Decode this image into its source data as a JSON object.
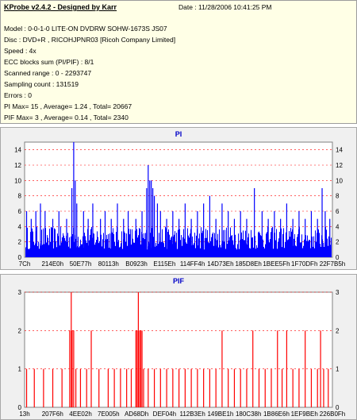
{
  "info": {
    "title": "KProbe v2.4.2 - Designed by Karr",
    "date": "Date : 11/28/2006 10:41:25 PM",
    "lines": [
      "Model : 0-0-1-0 LITE-ON DVDRW SOHW-1673S JS07",
      "Disc : DVD+R , RICOHJPNR03 [Ricoh Company Limited]",
      "Speed : 4x",
      "ECC blocks sum (PI/PIF) : 8/1",
      "Scanned range : 0 - 2293747",
      "Sampling count : 131519",
      "Errors : 0",
      "PI Max= 15 , Average= 1.24 , Total= 20667",
      "PIF Max= 3 , Average= 0.14 , Total= 2340"
    ]
  },
  "colors": {
    "pi_bar": "#0000ff",
    "pif_bar": "#ff0000",
    "grid": "#ff0000",
    "plot_bg": "#ffffff"
  },
  "chart_data": [
    {
      "type": "bar",
      "title": "PI",
      "ylim": [
        0,
        15
      ],
      "yticks": [
        0,
        2,
        4,
        6,
        8,
        10,
        12,
        14
      ],
      "xticks": [
        "7Ch",
        "214E0h",
        "50E77h",
        "80113h",
        "B0923h",
        "E115Eh",
        "114FF4h",
        "14D73Eh",
        "185D8Eh",
        "1BEE5Fh",
        "1F70DFh",
        "22F7B5h"
      ],
      "grid": true,
      "baseline_range": [
        1,
        4
      ],
      "spikes": [
        [
          0.005,
          6
        ],
        [
          0.02,
          5
        ],
        [
          0.035,
          6
        ],
        [
          0.05,
          7
        ],
        [
          0.065,
          6
        ],
        [
          0.09,
          5
        ],
        [
          0.11,
          6
        ],
        [
          0.135,
          5
        ],
        [
          0.152,
          9
        ],
        [
          0.158,
          15
        ],
        [
          0.163,
          10
        ],
        [
          0.168,
          7
        ],
        [
          0.19,
          6
        ],
        [
          0.205,
          5
        ],
        [
          0.22,
          7
        ],
        [
          0.245,
          5
        ],
        [
          0.26,
          6
        ],
        [
          0.28,
          5
        ],
        [
          0.3,
          7
        ],
        [
          0.32,
          5
        ],
        [
          0.335,
          6
        ],
        [
          0.36,
          5
        ],
        [
          0.38,
          6
        ],
        [
          0.395,
          9
        ],
        [
          0.4,
          12
        ],
        [
          0.405,
          10
        ],
        [
          0.41,
          10
        ],
        [
          0.415,
          9
        ],
        [
          0.42,
          8
        ],
        [
          0.43,
          7
        ],
        [
          0.44,
          6
        ],
        [
          0.46,
          5
        ],
        [
          0.48,
          6
        ],
        [
          0.5,
          5
        ],
        [
          0.52,
          7
        ],
        [
          0.54,
          5
        ],
        [
          0.56,
          6
        ],
        [
          0.58,
          7
        ],
        [
          0.6,
          8
        ],
        [
          0.62,
          5
        ],
        [
          0.64,
          7
        ],
        [
          0.66,
          6
        ],
        [
          0.68,
          5
        ],
        [
          0.7,
          6
        ],
        [
          0.72,
          5
        ],
        [
          0.745,
          9
        ],
        [
          0.77,
          6
        ],
        [
          0.79,
          5
        ],
        [
          0.81,
          6
        ],
        [
          0.83,
          5
        ],
        [
          0.85,
          7
        ],
        [
          0.87,
          5
        ],
        [
          0.89,
          6
        ],
        [
          0.91,
          5
        ],
        [
          0.93,
          6
        ],
        [
          0.95,
          5
        ],
        [
          0.965,
          9
        ],
        [
          0.975,
          6
        ],
        [
          0.99,
          5
        ]
      ]
    },
    {
      "type": "bar",
      "title": "PIF",
      "ylim": [
        0,
        3
      ],
      "yticks": [
        0,
        1,
        2,
        3
      ],
      "xticks": [
        "13h",
        "207F6h",
        "4EE02h",
        "7E005h",
        "AD68Dh",
        "DEF04h",
        "112B3Eh",
        "149BE1h",
        "180C38h",
        "1B86E6h",
        "1EF9BEh",
        "226B0Fh"
      ],
      "grid": true,
      "bars": [
        [
          0.005,
          1
        ],
        [
          0.03,
          1
        ],
        [
          0.06,
          1
        ],
        [
          0.09,
          1
        ],
        [
          0.12,
          1
        ],
        [
          0.145,
          2
        ],
        [
          0.15,
          3
        ],
        [
          0.153,
          2
        ],
        [
          0.158,
          2
        ],
        [
          0.165,
          1
        ],
        [
          0.18,
          1
        ],
        [
          0.2,
          1
        ],
        [
          0.215,
          2
        ],
        [
          0.24,
          1
        ],
        [
          0.27,
          1
        ],
        [
          0.29,
          1
        ],
        [
          0.31,
          1
        ],
        [
          0.33,
          1
        ],
        [
          0.345,
          1
        ],
        [
          0.36,
          2
        ],
        [
          0.364,
          2
        ],
        [
          0.368,
          3
        ],
        [
          0.372,
          2
        ],
        [
          0.376,
          2
        ],
        [
          0.38,
          2
        ],
        [
          0.385,
          1
        ],
        [
          0.4,
          1
        ],
        [
          0.42,
          1
        ],
        [
          0.44,
          1
        ],
        [
          0.46,
          1
        ],
        [
          0.48,
          1
        ],
        [
          0.5,
          1
        ],
        [
          0.52,
          1
        ],
        [
          0.54,
          1
        ],
        [
          0.56,
          1
        ],
        [
          0.58,
          1
        ],
        [
          0.6,
          1
        ],
        [
          0.62,
          1
        ],
        [
          0.64,
          2
        ],
        [
          0.66,
          1
        ],
        [
          0.68,
          1
        ],
        [
          0.7,
          1
        ],
        [
          0.72,
          1
        ],
        [
          0.74,
          2
        ],
        [
          0.76,
          1
        ],
        [
          0.78,
          1
        ],
        [
          0.8,
          1
        ],
        [
          0.82,
          2
        ],
        [
          0.835,
          1
        ],
        [
          0.85,
          2
        ],
        [
          0.87,
          1
        ],
        [
          0.89,
          1
        ],
        [
          0.91,
          2
        ],
        [
          0.93,
          1
        ],
        [
          0.95,
          1
        ],
        [
          0.96,
          2
        ],
        [
          0.97,
          1
        ],
        [
          0.985,
          1
        ]
      ]
    }
  ]
}
